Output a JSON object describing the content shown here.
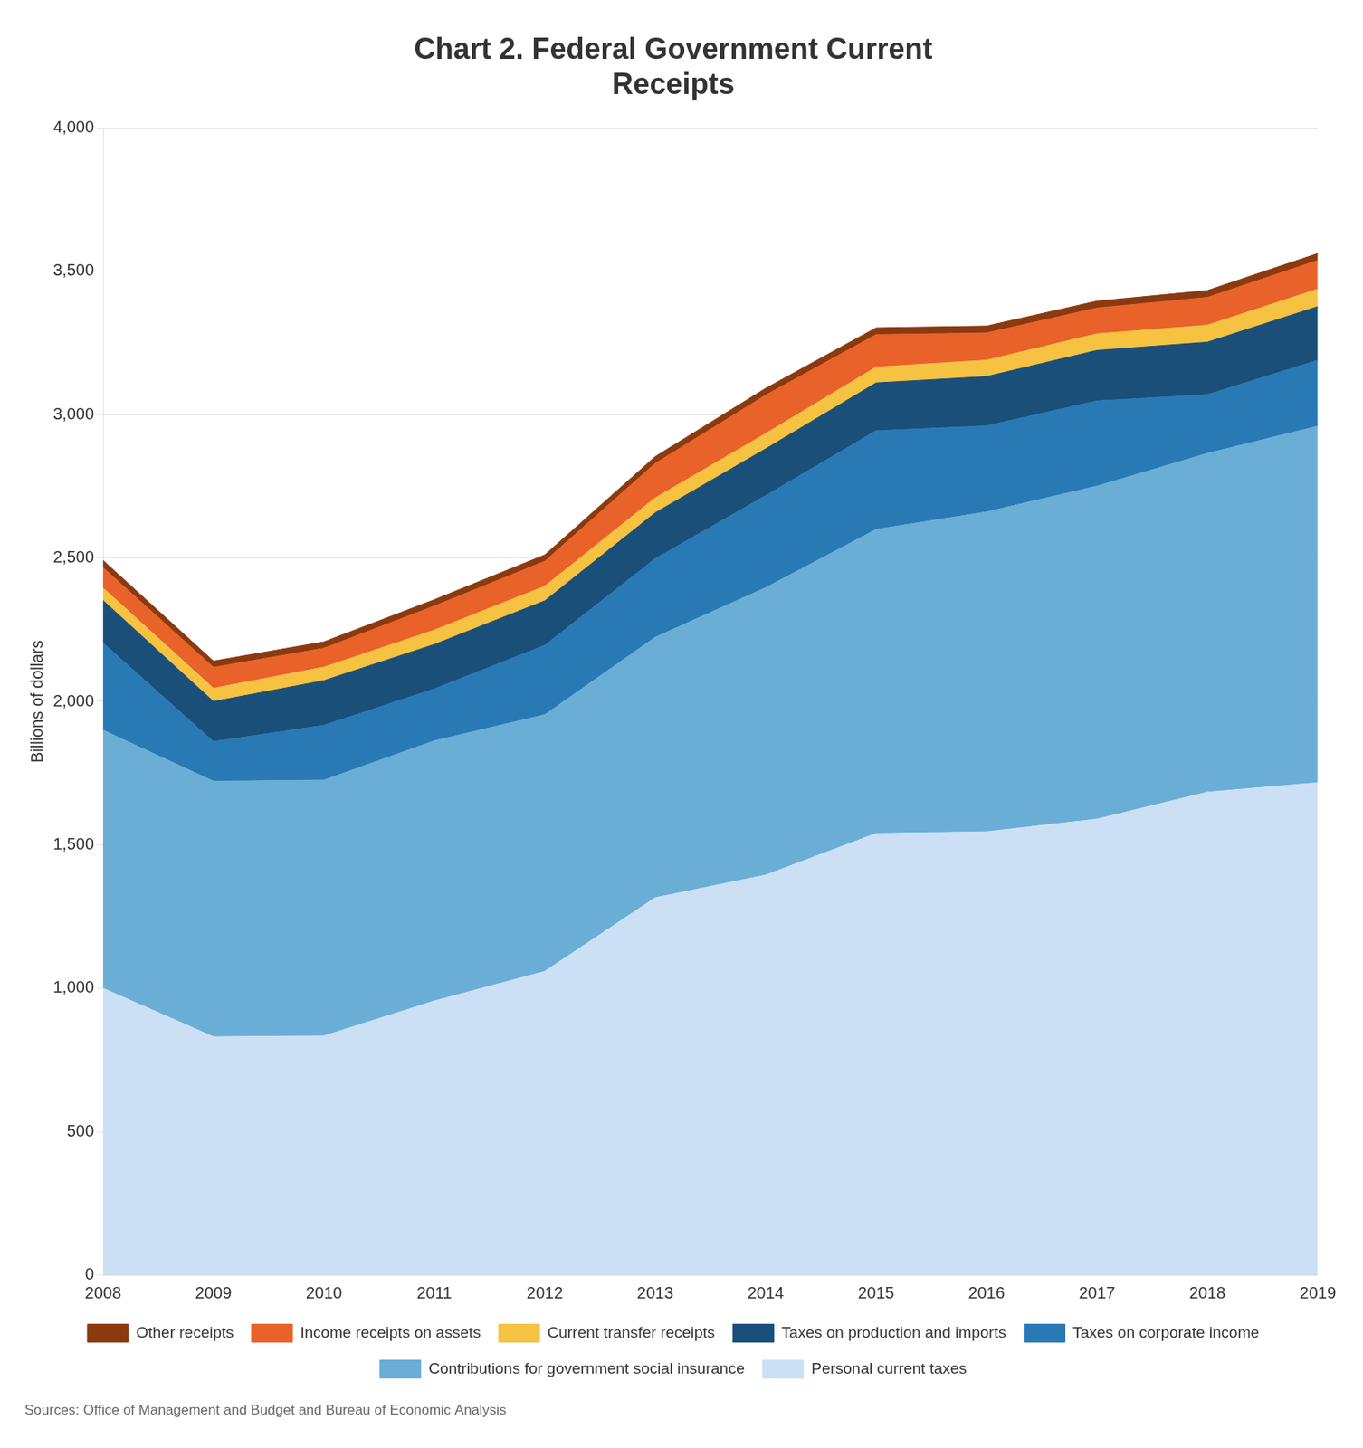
{
  "chart_data": {
    "type": "area",
    "title": "Chart 2. Federal Government Current\nReceipts",
    "ylabel": "Billions of dollars",
    "annotations": [
      "Sources: Office of Management and Budget and Bureau of Economic Analysis"
    ],
    "x": [
      2008,
      2009,
      2010,
      2011,
      2012,
      2013,
      2014,
      2015,
      2016,
      2017,
      2018,
      2019
    ],
    "xlim": [
      2008,
      2019
    ],
    "xticks": [
      2008,
      2009,
      2010,
      2011,
      2012,
      2013,
      2014,
      2015,
      2016,
      2017,
      2018,
      2019
    ],
    "series": [
      {
        "name": "Personal current taxes",
        "color": "#cce0f5",
        "values": [
          1000,
          831,
          834,
          956,
          1059,
          1316,
          1395,
          1540,
          1546,
          1590,
          1684,
          1717
        ]
      },
      {
        "name": "Contributions for government social insurance",
        "color": "#6aaed6",
        "values": [
          900,
          891,
          892,
          907,
          895,
          908,
          1002,
          1060,
          1115,
          1161,
          1181,
          1243
        ]
      },
      {
        "name": "Taxes on corporate income",
        "color": "#2979b5",
        "values": [
          304,
          138,
          191,
          181,
          242,
          274,
          321,
          344,
          300,
          297,
          205,
          230
        ]
      },
      {
        "name": "Taxes on production and imports",
        "color": "#1a4f7a",
        "values": [
          148,
          140,
          156,
          155,
          155,
          160,
          163,
          167,
          172,
          176,
          183,
          187
        ]
      },
      {
        "name": "Current transfer receipts",
        "color": "#f5c242",
        "values": [
          44,
          46,
          47,
          50,
          51,
          52,
          53,
          55,
          57,
          58,
          59,
          61
        ]
      },
      {
        "name": "Income receipts on assets",
        "color": "#e8622a",
        "values": [
          71,
          73,
          66,
          84,
          87,
          120,
          134,
          113,
          95,
          90,
          97,
          100
        ]
      },
      {
        "name": "Other receipts",
        "color": "#8b3a0f",
        "values": [
          25,
          22,
          22,
          22,
          22,
          24,
          24,
          24,
          24,
          24,
          24,
          24
        ]
      }
    ],
    "stacked": true,
    "ylim": [
      0,
      4000
    ],
    "yticks": [
      0,
      500,
      {
        "value": 1000,
        "label": "1,000"
      },
      {
        "value": 1500,
        "label": "1,500"
      },
      {
        "value": 2000,
        "label": "2,000"
      },
      {
        "value": 2500,
        "label": "2,500"
      },
      {
        "value": 3000,
        "label": "3,000"
      },
      {
        "value": 3500,
        "label": "3,500"
      },
      {
        "value": 4000,
        "label": "4,000"
      }
    ],
    "grid": "y",
    "legend": "bottom"
  }
}
